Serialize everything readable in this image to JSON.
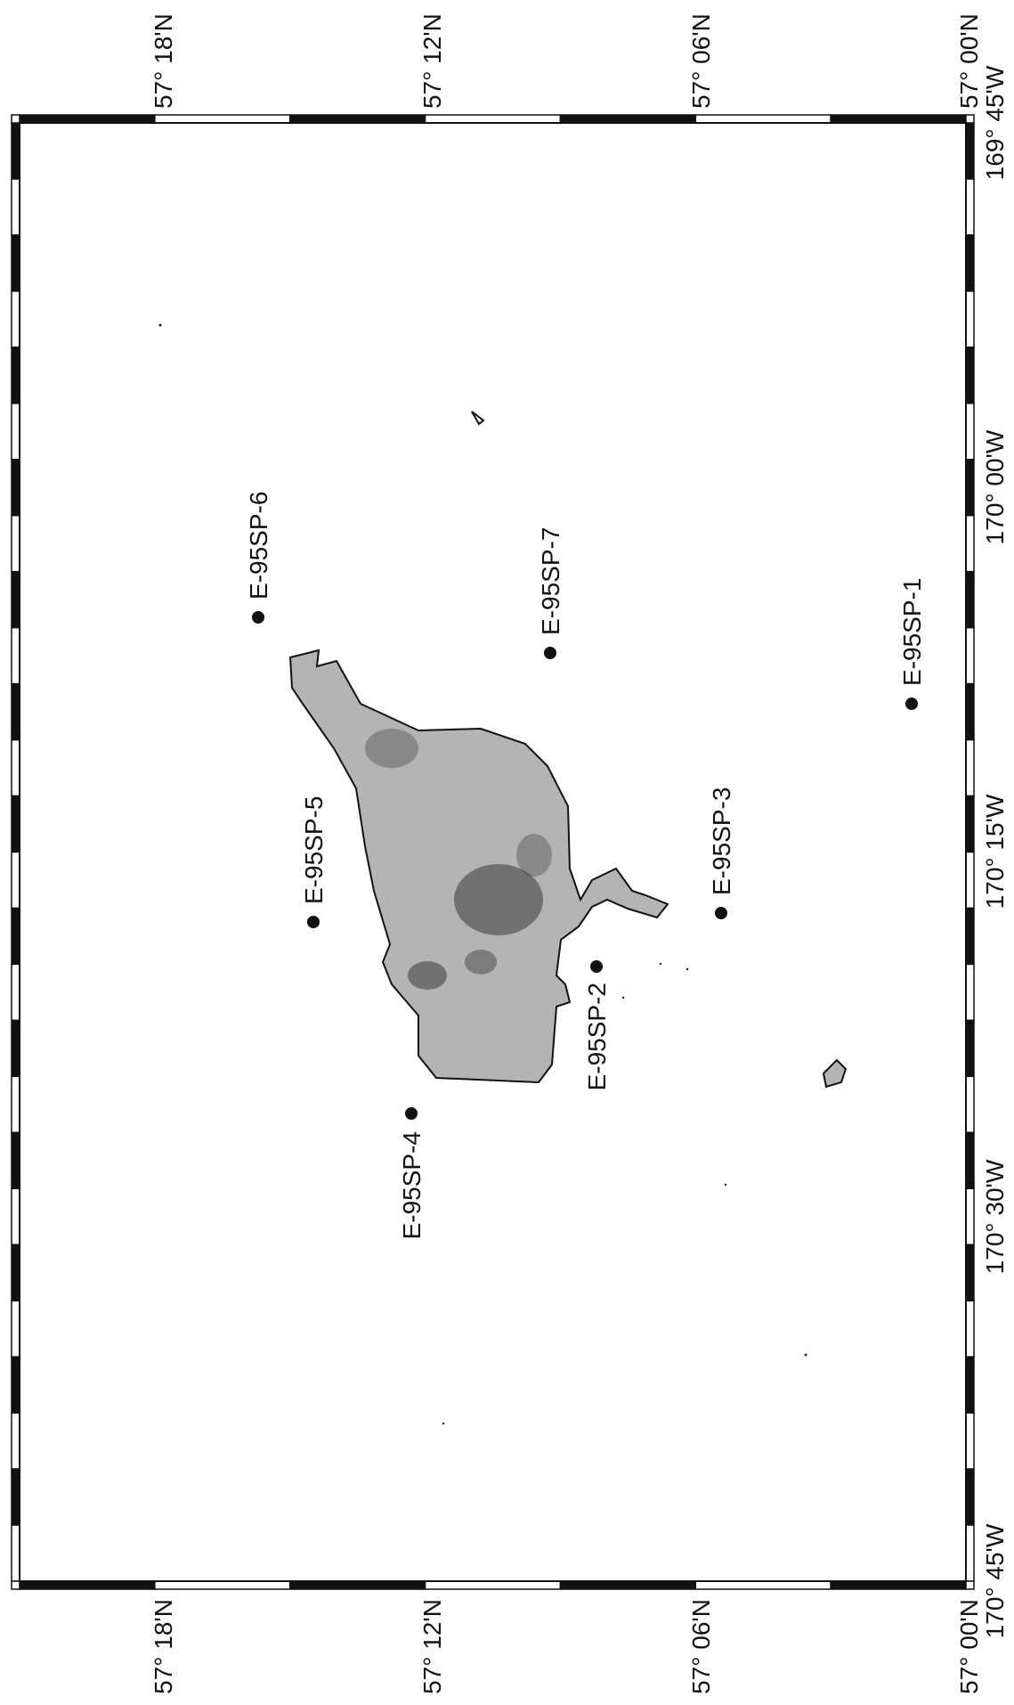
{
  "map": {
    "orientation": "rotated 90 degrees counter-clockwise",
    "colors": {
      "frame_dark": "#111111",
      "frame_light": "#ffffff",
      "land_fill": "#b4b4b4",
      "land_shadow": "#3a3a3a",
      "station_marker": "#111111",
      "background": "#ffffff"
    },
    "longitude_ticks": [
      {
        "label": "169° 45'W"
      },
      {
        "label": "170° 00'W"
      },
      {
        "label": "170° 15'W"
      },
      {
        "label": "170° 30'W"
      },
      {
        "label": "170° 45'W"
      }
    ],
    "latitude_ticks_top": [
      {
        "label": "57° 18'N"
      },
      {
        "label": "57° 12'N"
      },
      {
        "label": "57° 06'N"
      },
      {
        "label": "57° 00'N"
      }
    ],
    "latitude_ticks_bottom": [
      {
        "label": "57° 18'N"
      },
      {
        "label": "57° 12'N"
      },
      {
        "label": "57° 06'N"
      },
      {
        "label": "57° 00'N"
      }
    ],
    "stations": [
      {
        "id": "E-95SP-1"
      },
      {
        "id": "E-95SP-2"
      },
      {
        "id": "E-95SP-3"
      },
      {
        "id": "E-95SP-4"
      },
      {
        "id": "E-95SP-5"
      },
      {
        "id": "E-95SP-6"
      },
      {
        "id": "E-95SP-7"
      }
    ]
  }
}
